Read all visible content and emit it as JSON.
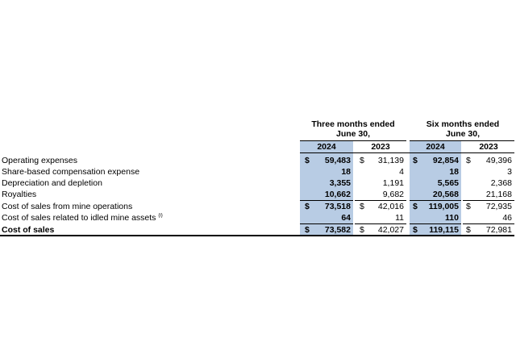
{
  "headers": {
    "three_months_line1": "Three months ended",
    "three_months_line2": "June 30,",
    "six_months_line1": "Six months ended",
    "six_months_line2": "June 30,",
    "years": [
      "2024",
      "2023",
      "2024",
      "2023"
    ]
  },
  "currency_symbol": "$",
  "rows": [
    {
      "label": "Operating expenses",
      "values": [
        "59,483",
        "31,139",
        "92,854",
        "49,396"
      ],
      "dollar": true
    },
    {
      "label": "Share-based compensation expense",
      "values": [
        "18",
        "4",
        "18",
        "3"
      ],
      "dollar": false
    },
    {
      "label": "Depreciation and depletion",
      "values": [
        "3,355",
        "1,191",
        "5,565",
        "2,368"
      ],
      "dollar": false
    },
    {
      "label": "Royalties",
      "values": [
        "10,662",
        "9,682",
        "20,568",
        "21,168"
      ],
      "dollar": false
    },
    {
      "label": "Cost of sales from mine operations",
      "values": [
        "73,518",
        "42,016",
        "119,005",
        "72,935"
      ],
      "dollar": true
    },
    {
      "label": "Cost of sales related to idled mine assets",
      "footnote": "(i)",
      "values": [
        "64",
        "11",
        "110",
        "46"
      ],
      "dollar": false
    },
    {
      "label": "Cost of sales",
      "values": [
        "73,582",
        "42,027",
        "119,115",
        "72,981"
      ],
      "dollar": true,
      "total": true
    }
  ],
  "colors": {
    "highlight": "#b8cce4"
  }
}
